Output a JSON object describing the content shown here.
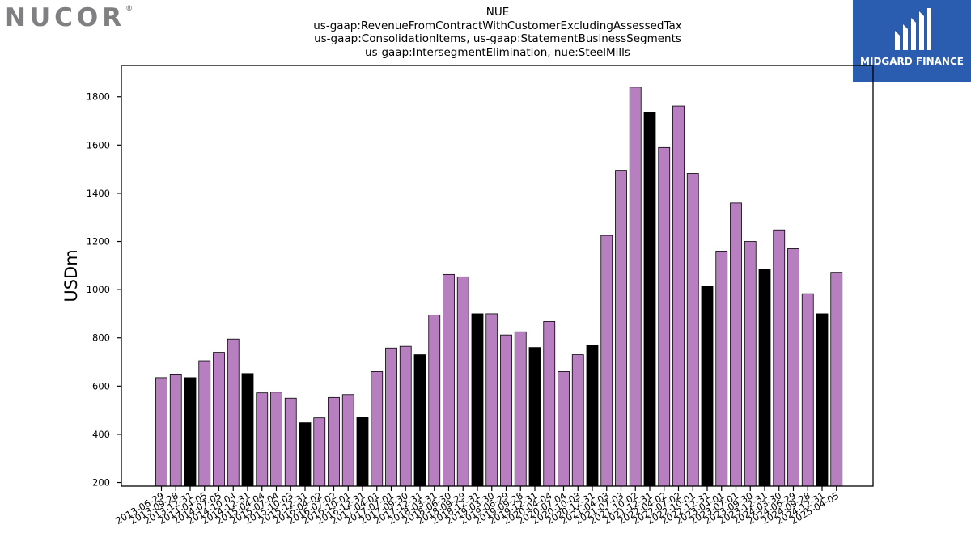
{
  "logos": {
    "left_text": "NUCOR",
    "left_mark": "®",
    "right_text": "MIDGARD FINANCE",
    "right_icon": "midgard-mark-icon"
  },
  "chart_data": {
    "type": "bar",
    "title_lines": [
      "NUE",
      "us-gaap:RevenueFromContractWithCustomerExcludingAssessedTax",
      "us-gaap:ConsolidationItems, us-gaap:StatementBusinessSegments",
      "us-gaap:IntersegmentElimination, nue:SteelMills"
    ],
    "ylabel": "USDm",
    "xlabel": "",
    "ylim": [
      185,
      1930
    ],
    "yticks": [
      200,
      400,
      600,
      800,
      1000,
      1200,
      1400,
      1600,
      1800
    ],
    "grid": false,
    "colors": {
      "quarter": "#b87fc0",
      "annual": "#000000",
      "edge": "#000000"
    },
    "categories": [
      "2013-06-29",
      "2013-09-28",
      "2013-12-31",
      "2014-04-05",
      "2014-07-05",
      "2014-10-04",
      "2014-12-31",
      "2015-04-04",
      "2015-07-04",
      "2015-10-03",
      "2015-12-31",
      "2016-04-02",
      "2016-07-02",
      "2016-10-01",
      "2016-12-31",
      "2017-04-01",
      "2017-07-01",
      "2017-09-30",
      "2017-12-31",
      "2018-03-31",
      "2018-06-30",
      "2018-09-29",
      "2018-12-31",
      "2019-03-30",
      "2019-06-29",
      "2019-09-28",
      "2019-12-31",
      "2020-04-04",
      "2020-07-04",
      "2020-10-03",
      "2020-12-31",
      "2021-04-03",
      "2021-07-03",
      "2021-10-02",
      "2021-12-31",
      "2022-04-02",
      "2022-07-02",
      "2022-10-01",
      "2022-12-31",
      "2023-04-01",
      "2023-07-01",
      "2023-09-30",
      "2023-12-31",
      "2024-03-30",
      "2024-06-29",
      "2024-09-28",
      "2024-12-31",
      "2025-04-05"
    ],
    "values": [
      635,
      650,
      635,
      705,
      740,
      795,
      652,
      572,
      575,
      550,
      448,
      468,
      553,
      565,
      470,
      660,
      758,
      765,
      730,
      895,
      1063,
      1053,
      900,
      900,
      812,
      825,
      760,
      868,
      660,
      730,
      770,
      1225,
      1495,
      1840,
      1737,
      1590,
      1762,
      1482,
      1013,
      1160,
      1360,
      1200,
      1083,
      1248,
      1170,
      983,
      900,
      1072
    ],
    "highlight": [
      false,
      false,
      true,
      false,
      false,
      false,
      true,
      false,
      false,
      false,
      true,
      false,
      false,
      false,
      true,
      false,
      false,
      false,
      true,
      false,
      false,
      false,
      true,
      false,
      false,
      false,
      true,
      false,
      false,
      false,
      true,
      false,
      false,
      false,
      true,
      false,
      false,
      false,
      true,
      false,
      false,
      false,
      true,
      false,
      false,
      false,
      true,
      false
    ]
  }
}
